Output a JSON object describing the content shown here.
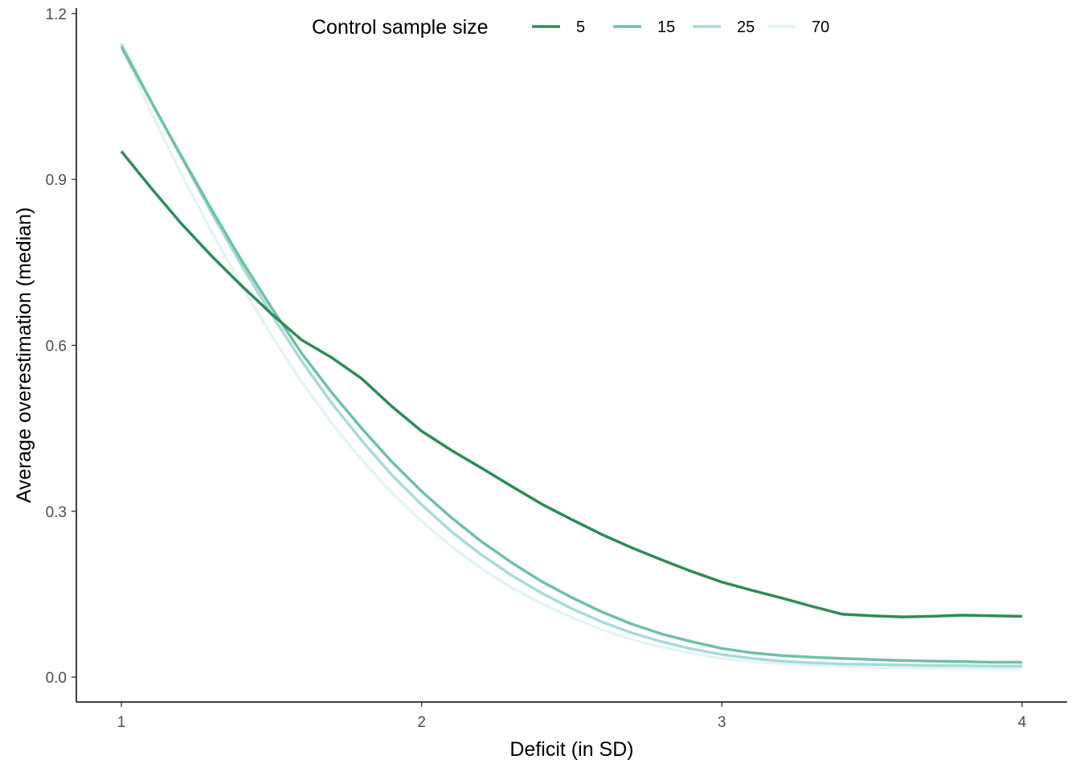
{
  "chart_data": {
    "type": "line",
    "xlabel": "Deficit (in SD)",
    "ylabel": "Average overestimation (median)",
    "xlim": [
      0.85,
      4.15
    ],
    "ylim": [
      -0.045,
      1.21
    ],
    "x_ticks": [
      1,
      2,
      3,
      4
    ],
    "x_tick_labels": [
      "1",
      "2",
      "3",
      "4"
    ],
    "y_ticks": [
      0.0,
      0.3,
      0.6,
      0.9,
      1.2
    ],
    "y_tick_labels": [
      "0.0",
      "0.3",
      "0.6",
      "0.9",
      "1.2"
    ],
    "grid": false,
    "legend": {
      "title": "Control sample size",
      "position": "top"
    },
    "x": [
      1.0,
      1.1,
      1.2,
      1.3,
      1.4,
      1.5,
      1.6,
      1.7,
      1.8,
      1.9,
      2.0,
      2.1,
      2.2,
      2.3,
      2.4,
      2.5,
      2.6,
      2.7,
      2.8,
      2.9,
      3.0,
      3.1,
      3.2,
      3.3,
      3.4,
      3.5,
      3.6,
      3.7,
      3.8,
      3.9,
      4.0
    ],
    "series": [
      {
        "name": "5",
        "color": "#2e8b57",
        "values": [
          0.951,
          0.884,
          0.82,
          0.762,
          0.708,
          0.657,
          0.61,
          0.578,
          0.54,
          0.49,
          0.445,
          0.41,
          0.378,
          0.345,
          0.313,
          0.285,
          0.258,
          0.234,
          0.212,
          0.191,
          0.172,
          0.157,
          0.143,
          0.128,
          0.114,
          0.111,
          0.109,
          0.11,
          0.112,
          0.111,
          0.11
        ]
      },
      {
        "name": "15",
        "color": "#6ec1a5",
        "values": [
          1.14,
          1.04,
          0.942,
          0.846,
          0.754,
          0.668,
          0.586,
          0.515,
          0.45,
          0.39,
          0.336,
          0.288,
          0.245,
          0.207,
          0.173,
          0.144,
          0.118,
          0.096,
          0.078,
          0.064,
          0.052,
          0.044,
          0.039,
          0.036,
          0.034,
          0.032,
          0.03,
          0.029,
          0.028,
          0.027,
          0.027
        ]
      },
      {
        "name": "25",
        "color": "#a8dad8",
        "values": [
          1.145,
          1.04,
          0.94,
          0.84,
          0.745,
          0.656,
          0.572,
          0.496,
          0.428,
          0.366,
          0.312,
          0.263,
          0.221,
          0.184,
          0.152,
          0.124,
          0.1,
          0.08,
          0.064,
          0.051,
          0.041,
          0.034,
          0.029,
          0.026,
          0.024,
          0.023,
          0.022,
          0.021,
          0.021,
          0.02,
          0.02
        ]
      },
      {
        "name": "70",
        "color": "#e4f4f4",
        "values": [
          1.14,
          1.02,
          0.91,
          0.806,
          0.708,
          0.618,
          0.534,
          0.46,
          0.393,
          0.334,
          0.282,
          0.236,
          0.196,
          0.162,
          0.133,
          0.108,
          0.086,
          0.068,
          0.054,
          0.043,
          0.034,
          0.028,
          0.024,
          0.021,
          0.019,
          0.018,
          0.017,
          0.016,
          0.016,
          0.015,
          0.015
        ]
      }
    ]
  }
}
